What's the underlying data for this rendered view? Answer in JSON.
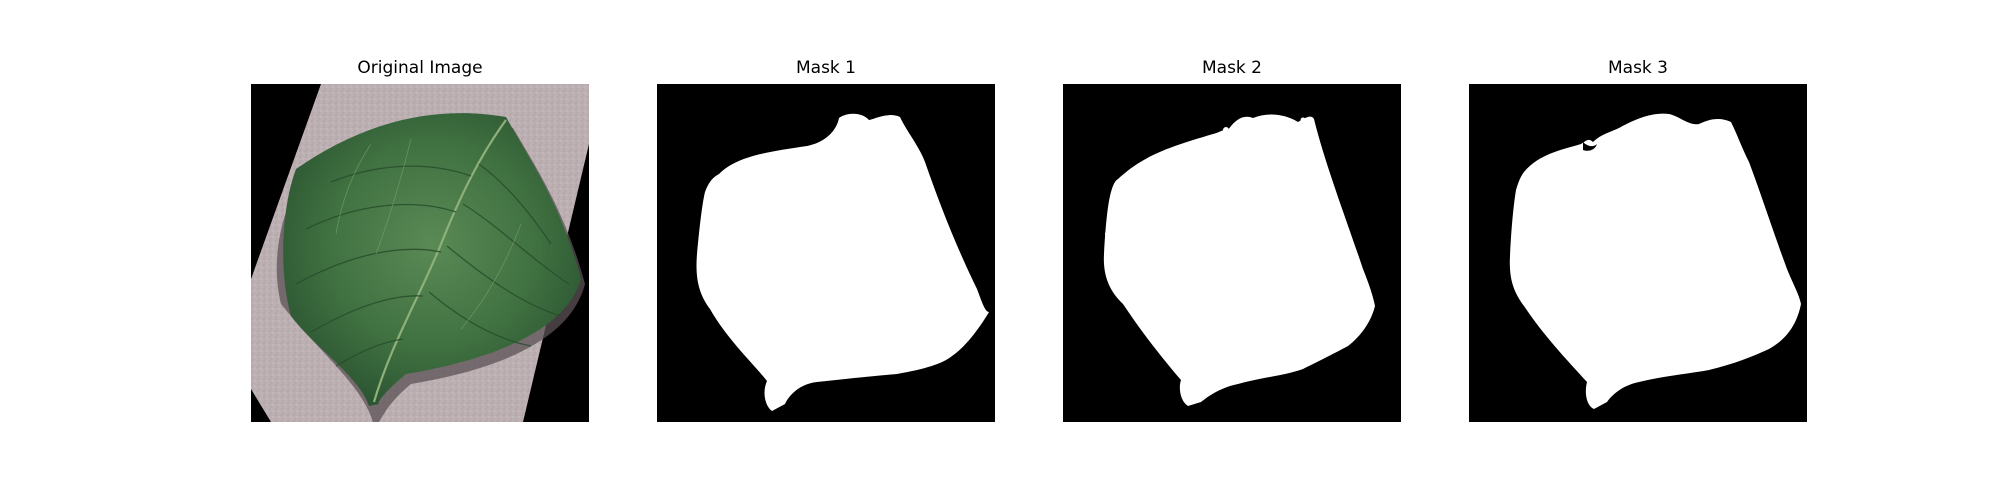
{
  "figure": {
    "panels": [
      {
        "title": "Original Image",
        "kind": "photo"
      },
      {
        "title": "Mask 1",
        "kind": "mask"
      },
      {
        "title": "Mask 2",
        "kind": "mask"
      },
      {
        "title": "Mask 3",
        "kind": "mask"
      }
    ]
  },
  "colors": {
    "background": "#000000",
    "mask_fill": "#ffffff",
    "paper": "#bdb0b3",
    "paper_dark": "#a89aa0",
    "leaf": "#3f7040",
    "leaf_dark": "#2a5231",
    "leaf_light": "#6f9a62",
    "shadow": "#5c5256"
  }
}
